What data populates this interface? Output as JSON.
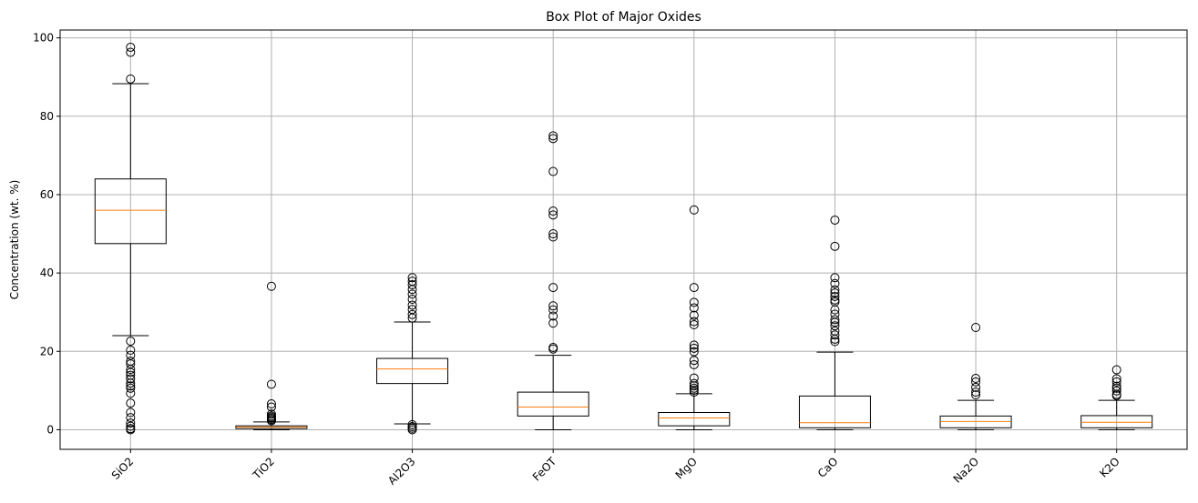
{
  "chart_data": {
    "type": "box",
    "title": "Box Plot of Major Oxides",
    "xlabel": "",
    "ylabel": "Concentration (wt. %)",
    "ylim": [
      -5,
      102
    ],
    "yticks": [
      0,
      20,
      40,
      60,
      80,
      100
    ],
    "grid": true,
    "colors": {
      "box": "#000000",
      "median": "#ff7f0e",
      "grid": "#b0b0b0"
    },
    "categories": [
      "SiO2",
      "TiO2",
      "Al2O3",
      "FeOT",
      "MgO",
      "CaO",
      "Na2O",
      "K2O"
    ],
    "boxes": [
      {
        "name": "SiO2",
        "whisker_low": 24.0,
        "q1": 47.5,
        "median": 56.0,
        "q3": 64.0,
        "whisker_high": 88.3,
        "outliers": [
          97.6,
          96.3,
          89.5,
          22.6,
          20.3,
          19.0,
          17.5,
          16.8,
          15.4,
          14.6,
          13.9,
          13.0,
          11.9,
          11.2,
          10.6,
          9.3,
          6.8,
          4.4,
          3.1,
          1.7,
          0.9,
          0.3,
          0.0
        ]
      },
      {
        "name": "TiO2",
        "whisker_low": 0.0,
        "q1": 0.3,
        "median": 0.7,
        "q3": 1.0,
        "whisker_high": 2.0,
        "outliers": [
          36.6,
          11.6,
          6.6,
          5.8,
          4.0,
          3.5,
          3.2,
          2.9,
          2.6,
          2.3
        ]
      },
      {
        "name": "Al2O3",
        "whisker_low": 1.5,
        "q1": 11.8,
        "median": 15.5,
        "q3": 18.2,
        "whisker_high": 27.5,
        "outliers": [
          38.8,
          37.9,
          37.0,
          35.8,
          34.6,
          33.3,
          31.8,
          30.7,
          29.4,
          28.5,
          1.3,
          0.8,
          0.4,
          0.0
        ]
      },
      {
        "name": "FeOT",
        "whisker_low": 0.0,
        "q1": 3.5,
        "median": 5.8,
        "q3": 9.6,
        "whisker_high": 19.0,
        "outliers": [
          75.0,
          74.3,
          65.9,
          55.8,
          54.8,
          50.0,
          49.2,
          36.3,
          31.6,
          30.6,
          29.0,
          27.2,
          21.0,
          20.6
        ]
      },
      {
        "name": "MgO",
        "whisker_low": 0.0,
        "q1": 1.0,
        "median": 3.0,
        "q3": 4.4,
        "whisker_high": 9.2,
        "outliers": [
          56.1,
          36.3,
          32.5,
          31.1,
          29.2,
          27.6,
          26.8,
          21.6,
          20.8,
          19.9,
          17.7,
          16.6,
          13.2,
          11.8,
          11.2,
          10.6,
          10.1,
          9.6
        ]
      },
      {
        "name": "CaO",
        "whisker_low": 0.0,
        "q1": 0.5,
        "median": 1.8,
        "q3": 8.6,
        "whisker_high": 19.8,
        "outliers": [
          53.5,
          46.8,
          38.8,
          37.3,
          35.7,
          34.9,
          34.0,
          33.1,
          32.6,
          30.6,
          29.5,
          28.1,
          27.4,
          26.5,
          25.2,
          24.2,
          23.1,
          22.5
        ]
      },
      {
        "name": "Na2O",
        "whisker_low": 0.0,
        "q1": 0.5,
        "median": 2.1,
        "q3": 3.5,
        "whisker_high": 7.5,
        "outliers": [
          26.1,
          13.1,
          12.2,
          10.8,
          9.6,
          8.9
        ]
      },
      {
        "name": "K2O",
        "whisker_low": 0.0,
        "q1": 0.5,
        "median": 1.9,
        "q3": 3.6,
        "whisker_high": 7.5,
        "outliers": [
          15.3,
          13.0,
          12.2,
          11.1,
          10.6,
          9.9,
          9.0,
          8.7
        ]
      }
    ]
  }
}
